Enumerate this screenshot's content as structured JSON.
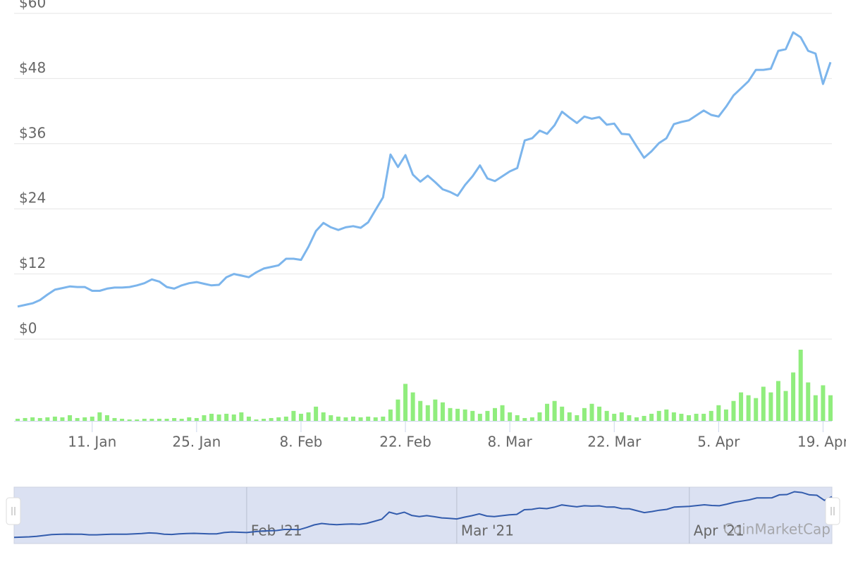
{
  "chart_data": {
    "type": "line",
    "categories": [
      null,
      null,
      null,
      null,
      null,
      null,
      null,
      null,
      null,
      null,
      "11. Jan",
      null,
      null,
      null,
      null,
      null,
      null,
      null,
      null,
      null,
      null,
      null,
      null,
      null,
      "25. Jan",
      null,
      null,
      null,
      null,
      null,
      null,
      null,
      null,
      null,
      null,
      null,
      null,
      null,
      "8. Feb",
      null,
      null,
      null,
      null,
      null,
      null,
      null,
      null,
      null,
      null,
      null,
      null,
      null,
      "22. Feb",
      null,
      null,
      null,
      null,
      null,
      null,
      null,
      null,
      null,
      null,
      null,
      null,
      null,
      "8. Mar",
      null,
      null,
      null,
      null,
      null,
      null,
      null,
      null,
      null,
      null,
      null,
      null,
      null,
      "22. Mar",
      null,
      null,
      null,
      null,
      null,
      null,
      null,
      null,
      null,
      null,
      null,
      null,
      null,
      "5. Apr",
      null,
      null,
      null,
      null,
      null,
      null,
      null,
      null,
      null,
      null,
      null,
      null,
      null,
      "19. Apr",
      null
    ],
    "series": [
      {
        "color": "#7cb5ec",
        "values": [
          6.0,
          6.3,
          6.6,
          7.2,
          8.2,
          9.1,
          9.4,
          9.7,
          9.6,
          9.6,
          8.9,
          8.9,
          9.3,
          9.5,
          9.5,
          9.6,
          9.9,
          10.3,
          11.0,
          10.6,
          9.6,
          9.3,
          9.9,
          10.3,
          10.5,
          10.2,
          9.9,
          10.0,
          11.4,
          12.0,
          11.7,
          11.4,
          12.3,
          13.0,
          13.3,
          13.6,
          14.8,
          14.8,
          14.6,
          17.0,
          19.9,
          21.4,
          20.6,
          20.1,
          20.6,
          20.8,
          20.5,
          21.5,
          23.8,
          26.1,
          34.0,
          31.7,
          33.9,
          30.3,
          29.0,
          30.1,
          28.9,
          27.6,
          27.1,
          26.4,
          28.4,
          30.0,
          32.0,
          29.6,
          29.1,
          30.0,
          30.9,
          31.5,
          36.6,
          37.0,
          38.4,
          37.8,
          39.4,
          41.9,
          40.8,
          39.8,
          41.0,
          40.6,
          40.9,
          39.5,
          39.7,
          37.8,
          37.7,
          35.5,
          33.4,
          34.6,
          36.1,
          37.0,
          39.6,
          40.0,
          40.3,
          41.2,
          42.1,
          41.3,
          41.0,
          42.8,
          44.9,
          46.2,
          47.5,
          49.6,
          49.6,
          49.8,
          53.1,
          53.4,
          56.5,
          55.6,
          53.1,
          52.6,
          47.0,
          51.0
        ]
      },
      {
        "type": "bar",
        "axis": "y2",
        "color": "#90ed7d",
        "values": [
          3,
          4,
          5,
          4,
          5,
          6,
          5,
          8,
          4,
          5,
          6,
          12,
          8,
          4,
          3,
          2,
          2,
          3,
          3,
          3,
          3,
          4,
          3,
          5,
          4,
          8,
          10,
          9,
          10,
          9,
          12,
          6,
          2,
          3,
          4,
          5,
          6,
          14,
          10,
          12,
          20,
          12,
          8,
          6,
          5,
          6,
          5,
          6,
          5,
          6,
          16,
          30,
          52,
          40,
          28,
          22,
          30,
          26,
          18,
          17,
          16,
          14,
          10,
          14,
          18,
          22,
          12,
          8,
          4,
          5,
          12,
          24,
          28,
          20,
          12,
          8,
          18,
          24,
          20,
          14,
          10,
          12,
          8,
          5,
          7,
          10,
          14,
          16,
          12,
          10,
          8,
          10,
          10,
          14,
          22,
          16,
          28,
          40,
          36,
          32,
          48,
          40,
          56,
          42,
          68,
          100,
          54,
          36,
          50,
          36
        ]
      }
    ],
    "ylim": [
      0,
      60
    ],
    "yticks": [
      {
        "value": 0,
        "label": "$0"
      },
      {
        "value": 12,
        "label": "$12"
      },
      {
        "value": 24,
        "label": "$24"
      },
      {
        "value": 36,
        "label": "$36"
      },
      {
        "value": 48,
        "label": "$48"
      },
      {
        "value": 60,
        "label": "$60"
      }
    ],
    "y2lim": [
      0,
      100
    ],
    "grid": true,
    "navigator": {
      "labels": [
        "Feb '21",
        "Mar '21",
        "Apr '21"
      ],
      "color": "#335cad",
      "fill": "#dbe1f2"
    },
    "credit": "CoinMarketCap"
  }
}
